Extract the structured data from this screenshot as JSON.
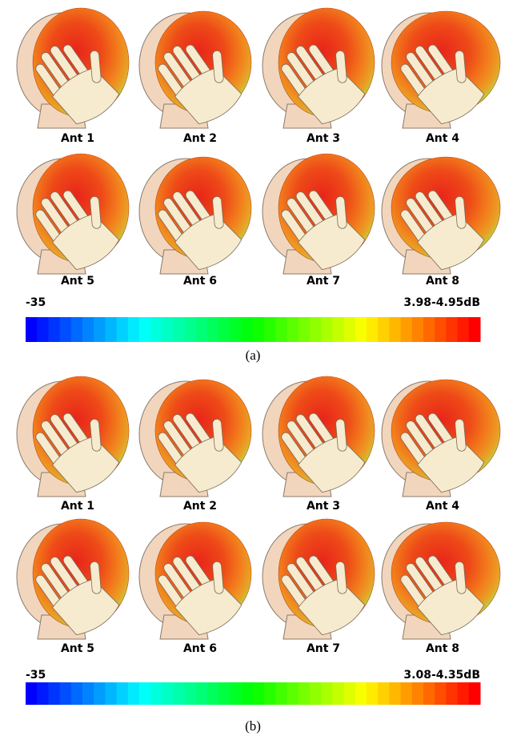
{
  "panels": [
    {
      "antennas": [
        "Ant 1",
        "Ant 2",
        "Ant 3",
        "Ant 4",
        "Ant 5",
        "Ant 6",
        "Ant 7",
        "Ant 8"
      ],
      "colorbar": {
        "min_label": "-35",
        "max_label": "3.98-4.95dB"
      },
      "caption": "(a)"
    },
    {
      "antennas": [
        "Ant 1",
        "Ant 2",
        "Ant 3",
        "Ant 4",
        "Ant 5",
        "Ant 6",
        "Ant 7",
        "Ant 8"
      ],
      "colorbar": {
        "min_label": "-35",
        "max_label": "3.08-4.35dB"
      },
      "caption": "(b)"
    }
  ]
}
